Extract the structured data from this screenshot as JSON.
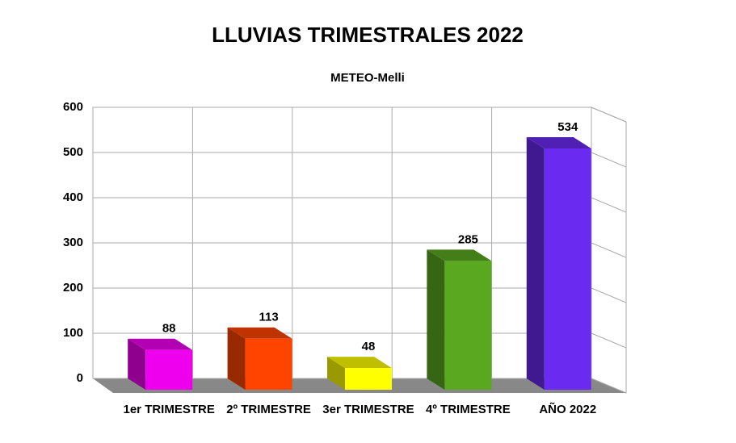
{
  "chart_data": {
    "type": "bar3d",
    "title": "LLUVIAS TRIMESTRALES 2022",
    "subtitle": "METEO-Melli",
    "categories": [
      "1er TRIMESTRE",
      "2º TRIMESTRE",
      "3er TRIMESTRE",
      "4º TRIMESTRE",
      "AÑO 2022"
    ],
    "values": [
      88,
      113,
      48,
      285,
      534
    ],
    "colors": [
      "#ee00ee",
      "#ff4400",
      "#ffff00",
      "#5aa820",
      "#6a2af0"
    ],
    "ylim": [
      0,
      600
    ],
    "yticks": [
      0,
      100,
      200,
      300,
      400,
      500,
      600
    ],
    "grid": true
  }
}
